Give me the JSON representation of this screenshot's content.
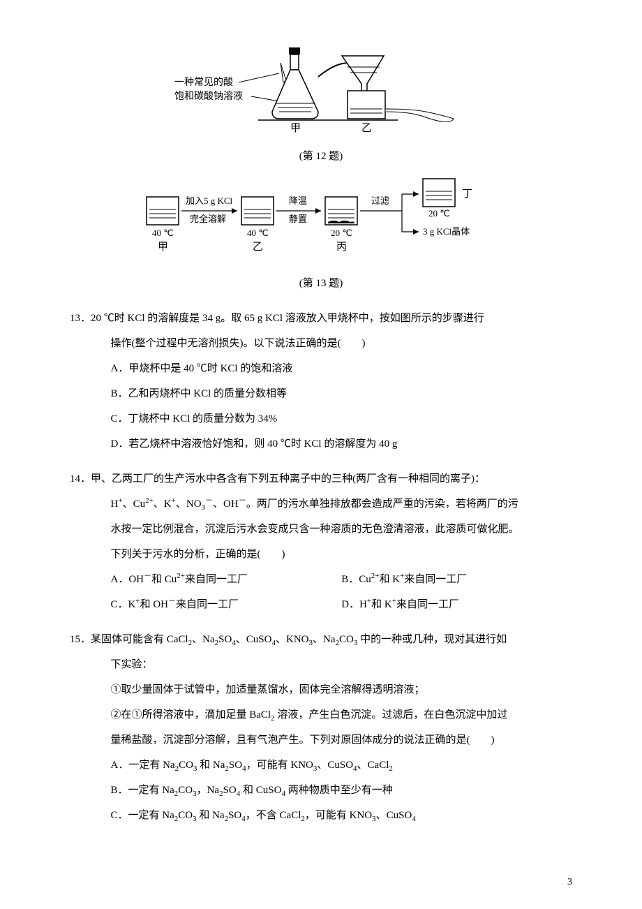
{
  "fig12": {
    "caption": "(第 12 题)",
    "labels": {
      "acid": "一种常见的酸",
      "sat": "饱和碳酸钠溶液",
      "jia": "甲",
      "yi": "乙"
    },
    "colors": {
      "stroke": "#000000",
      "fill_liquid": "#ffffff",
      "bg": "#ffffff"
    }
  },
  "fig13": {
    "caption": "(第 13 题)",
    "beakers": {
      "jia": {
        "label": "甲",
        "temp": "40 ℃"
      },
      "yi": {
        "label": "乙",
        "temp": "40 ℃"
      },
      "bing": {
        "label": "丙",
        "temp": "20 ℃"
      },
      "ding": {
        "label": "丁",
        "temp": "20 ℃"
      }
    },
    "arrows": {
      "a1_top": "加入5 g KCl",
      "a1_bot": "完全溶解",
      "a2_top": "降温",
      "a2_bot": "静置",
      "a3": "过滤",
      "out": "3 g KCl晶体"
    },
    "colors": {
      "stroke": "#000000"
    }
  },
  "q13": {
    "num": "13．",
    "stem1": "20 ℃时 KCl 的溶解度是 34 g。取 65 g KCl 溶液放入甲烧杯中，按如图所示的步骤进行",
    "stem2": "操作(整个过程中无溶剂损失)。以下说法正确的是(　　)",
    "A": "A．甲烧杯中是 40 ℃时 KCl 的饱和溶液",
    "B": "B．乙和丙烧杯中 KCl 的质量分数相等",
    "C": "C．丁烧杯中 KCl 的质量分数为 34%",
    "D": "D．若乙烧杯中溶液恰好饱和，则 40 ℃时 KCl 的溶解度为 40 g"
  },
  "q14": {
    "num": "14．",
    "stem1": "甲、乙两工厂的生产污水中各含有下列五种离子中的三种(两厂含有一种相同的离子)：",
    "stem2_html": "H<sup>+</sup>、Cu<sup>2+</sup>、K<sup>+</sup>、NO<sub>3</sub><sup>－</sup>、OH<sup>－</sup>。两厂的污水单独排放都会造成严重的污染，若将两厂的污",
    "stem3": "水按一定比例混合，沉淀后污水会变成只含一种溶质的无色澄清溶液，此溶质可做化肥。",
    "stem4": "下列关于污水的分析，正确的是(　　)",
    "A_html": "A．OH<sup>－</sup>和 Cu<sup>2+</sup>来自同一工厂",
    "B_html": "B．Cu<sup>2+</sup>和 K<sup>+</sup>来自同一工厂",
    "C_html": "C．K<sup>+</sup>和 OH<sup>－</sup>来自同一工厂",
    "D_html": "D．H<sup>+</sup>和 K<sup>+</sup>来自同一工厂"
  },
  "q15": {
    "num": "15．",
    "stem1_html": "某固体可能含有 CaCl<sub>2</sub>、Na<sub>2</sub>SO<sub>4</sub>、CuSO<sub>4</sub>、KNO<sub>3</sub>、Na<sub>2</sub>CO<sub>3</sub> 中的一种或几种，现对其进行如",
    "stem2": "下实验：",
    "step1": "①取少量固体于试管中，加适量蒸馏水，固体完全溶解得透明溶液；",
    "step2_html": "②在①所得溶液中，滴加足量 BaCl<sub>2</sub> 溶液，产生白色沉淀。过滤后，在白色沉淀中加过",
    "step2b": "量稀盐酸，沉淀部分溶解，且有气泡产生。下列对原固体成分的说法正确的是(　　)",
    "A_html": "A．一定有 Na<sub>2</sub>CO<sub>3</sub> 和 Na<sub>2</sub>SO<sub>4</sub>，可能有 KNO<sub>3</sub>、CuSO<sub>4</sub>、CaCl<sub>2</sub>",
    "B_html": "B．一定有 Na<sub>2</sub>CO<sub>3</sub>，Na<sub>2</sub>SO<sub>4</sub> 和 CuSO<sub>4</sub> 两种物质中至少有一种",
    "C_html": "C．一定有 Na<sub>2</sub>CO<sub>3</sub> 和 Na<sub>2</sub>SO<sub>4</sub>，不含 CaCl<sub>2</sub>，可能有 KNO<sub>3</sub>、CuSO<sub>4</sub>"
  },
  "pagenum": "3"
}
